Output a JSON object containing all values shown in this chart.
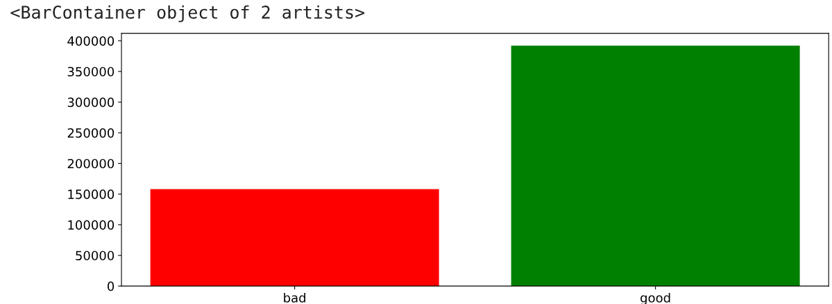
{
  "chart_data": {
    "type": "bar",
    "title": "<BarContainer object of 2 artists>",
    "categories": [
      "bad",
      "good"
    ],
    "values": [
      158000,
      392000
    ],
    "colors": [
      "#ff0000",
      "#008000"
    ],
    "ylim": [
      0,
      412000
    ],
    "yticks": [
      0,
      50000,
      100000,
      150000,
      200000,
      250000,
      300000,
      350000,
      400000
    ],
    "grid": false
  }
}
